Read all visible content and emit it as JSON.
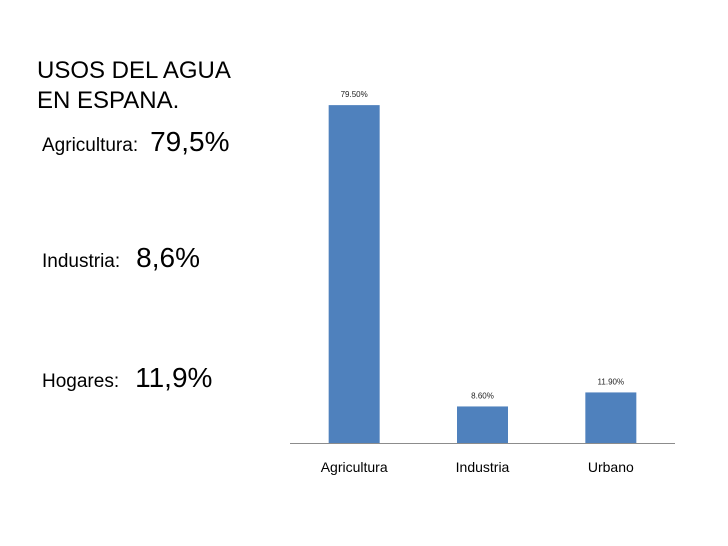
{
  "title_lines": [
    "USOS DEL AGUA",
    "EN ESPANA."
  ],
  "stats": [
    {
      "label": "Agricultura",
      "colon": ":",
      "value": "79,5%"
    },
    {
      "label": "Industria",
      "colon": ":",
      "value": "8,6%"
    },
    {
      "label": "Hogares",
      "colon": ":",
      "value": "11,9%"
    }
  ],
  "colors": {
    "bar": "#4f81bd",
    "axis": "#8c8c8c"
  },
  "chart_data": {
    "type": "bar",
    "categories": [
      "Agricultura",
      "Industria",
      "Urbano"
    ],
    "values": [
      79.5,
      8.6,
      11.9
    ],
    "data_labels": [
      "79.50%",
      "8.60%",
      "11.90%"
    ],
    "ylim": [
      0,
      100
    ],
    "grid": false,
    "legend": "none"
  }
}
